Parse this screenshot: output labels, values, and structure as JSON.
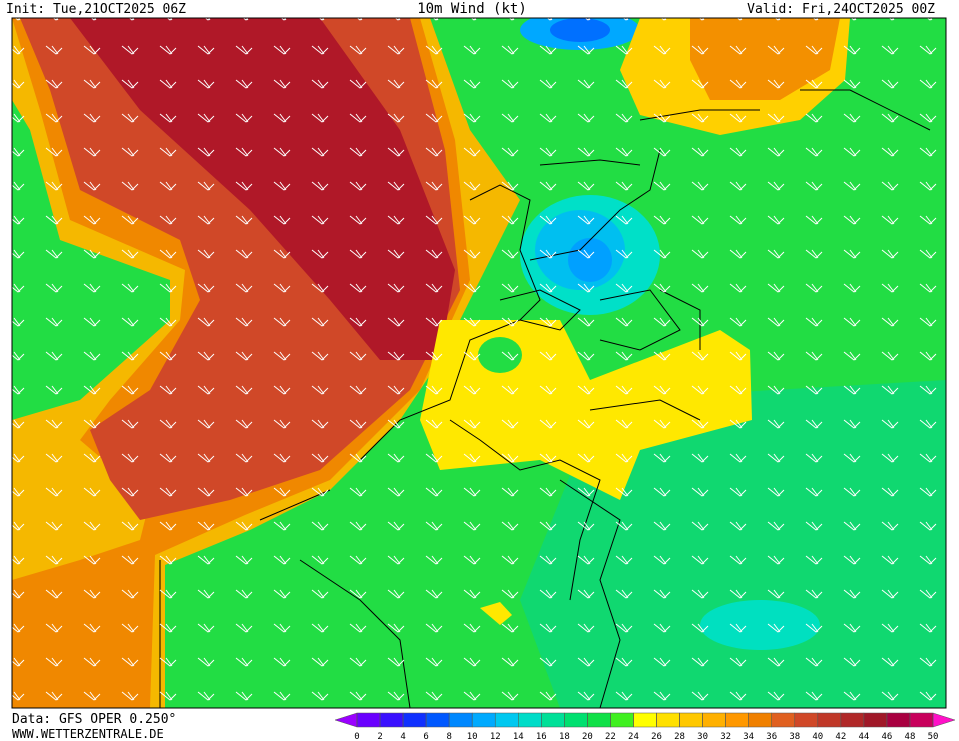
{
  "header": {
    "init": "Init: Tue,21OCT2025 06Z",
    "title": "10m Wind (kt)",
    "valid": "Valid: Fri,24OCT2025 00Z"
  },
  "footer": {
    "source": "Data: GFS OPER 0.250°",
    "site": "WWW.WETTERZENTRALE.DE"
  },
  "colorbar": {
    "ticks": [
      0,
      2,
      4,
      6,
      8,
      10,
      12,
      14,
      16,
      18,
      20,
      22,
      24,
      26,
      28,
      30,
      32,
      34,
      36,
      38,
      40,
      42,
      44,
      46,
      48,
      50
    ],
    "colors": [
      "#9a00ff",
      "#6a00ff",
      "#3a10ff",
      "#1030ff",
      "#0058ff",
      "#0088ff",
      "#00aaff",
      "#00c8f0",
      "#00dcc8",
      "#00e098",
      "#00e070",
      "#10e048",
      "#40f020",
      "#ffff00",
      "#ffe000",
      "#ffc800",
      "#ffb000",
      "#ff9800",
      "#f08000",
      "#e06020",
      "#d04828",
      "#c03828",
      "#b02828",
      "#a01828",
      "#a80040",
      "#c8005c",
      "#ff10c8"
    ]
  }
}
